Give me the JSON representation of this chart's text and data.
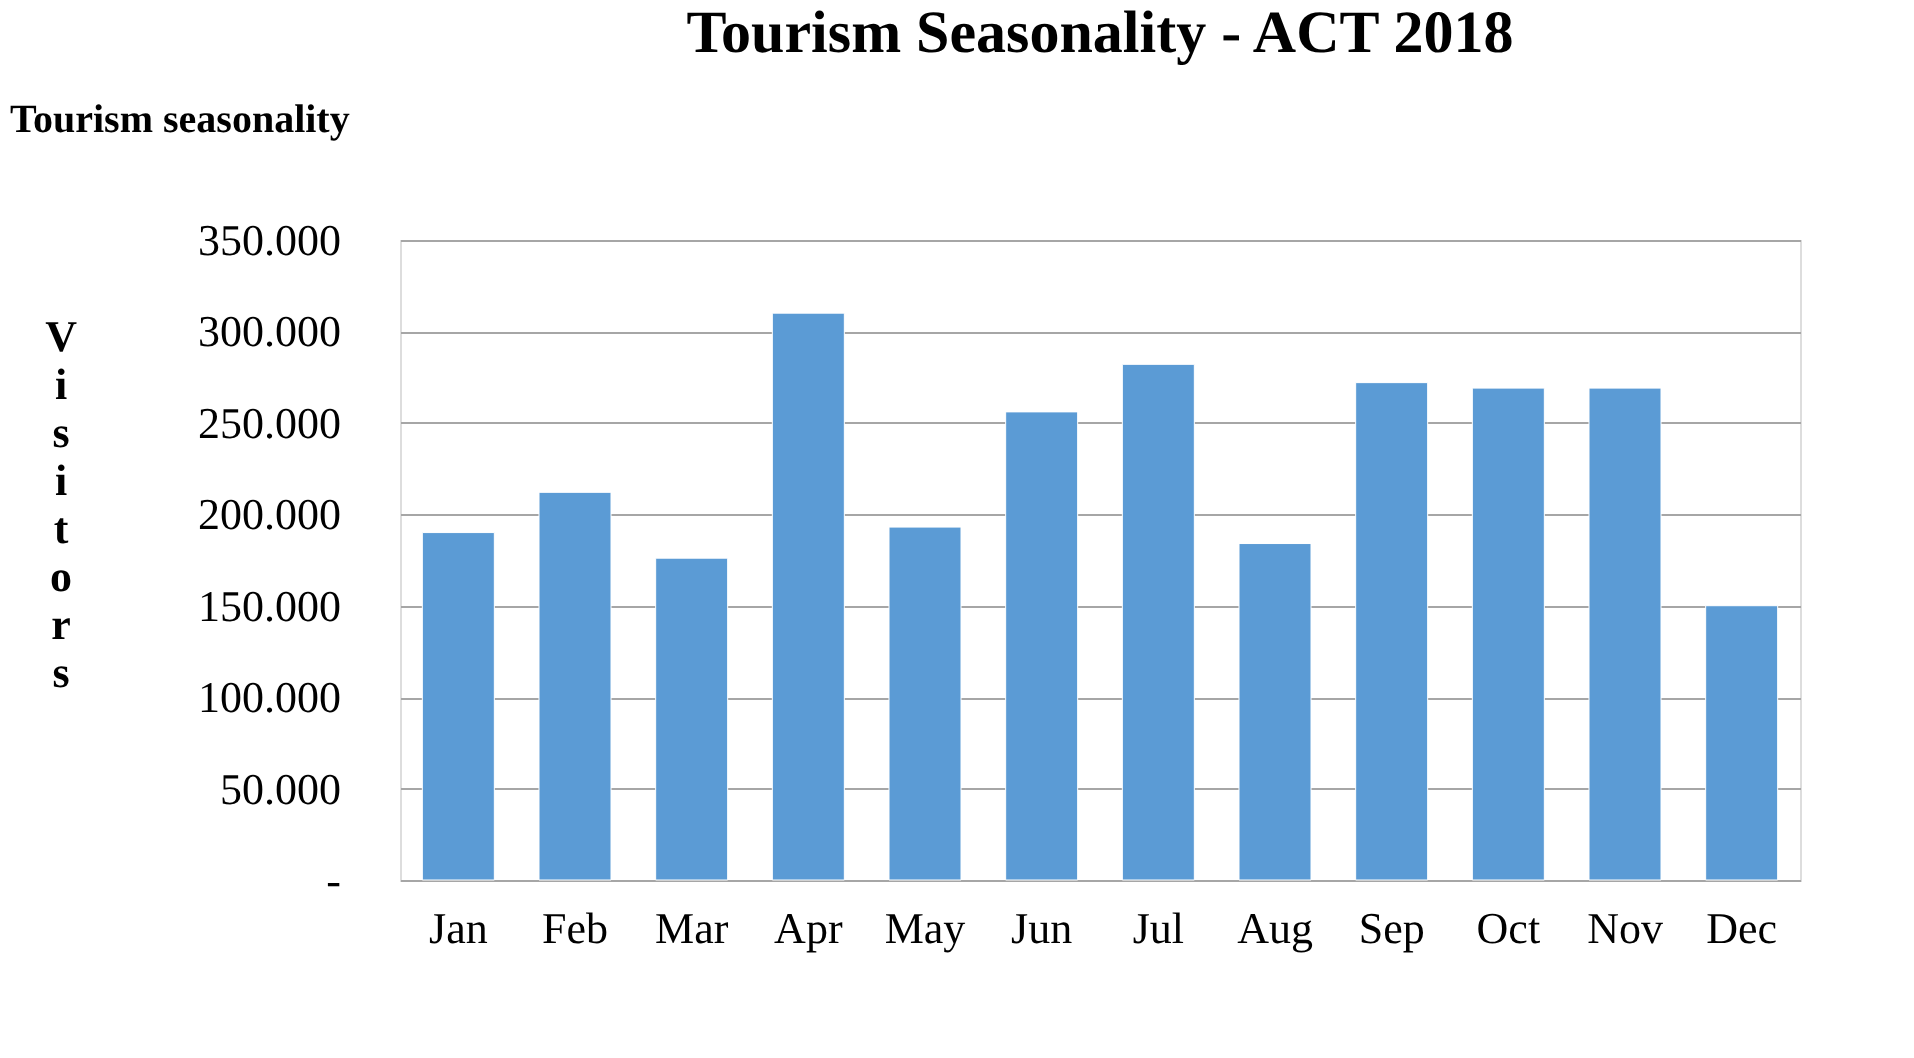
{
  "chart_data": {
    "type": "bar",
    "title": "Tourism Seasonality - ACT 2018",
    "ylabel": "Visitors",
    "annotations": [
      "Tourism seasonality"
    ],
    "categories": [
      "Jan",
      "Feb",
      "Mar",
      "Apr",
      "May",
      "Jun",
      "Jul",
      "Aug",
      "Sep",
      "Oct",
      "Nov",
      "Dec"
    ],
    "values": [
      190000,
      212000,
      176000,
      310000,
      193000,
      256000,
      282000,
      184000,
      272000,
      269000,
      269000,
      150000
    ],
    "color": "#5b9bd5",
    "ylim": [
      0,
      350000
    ],
    "yticks": [
      {
        "value": 0,
        "label": "-"
      },
      {
        "value": 50000,
        "label": "50.000"
      },
      {
        "value": 100000,
        "label": "100.000"
      },
      {
        "value": 150000,
        "label": "150.000"
      },
      {
        "value": 200000,
        "label": "200.000"
      },
      {
        "value": 250000,
        "label": "250.000"
      },
      {
        "value": 300000,
        "label": "300.000"
      },
      {
        "value": 350000,
        "label": "350.000"
      }
    ],
    "grid": "y"
  }
}
